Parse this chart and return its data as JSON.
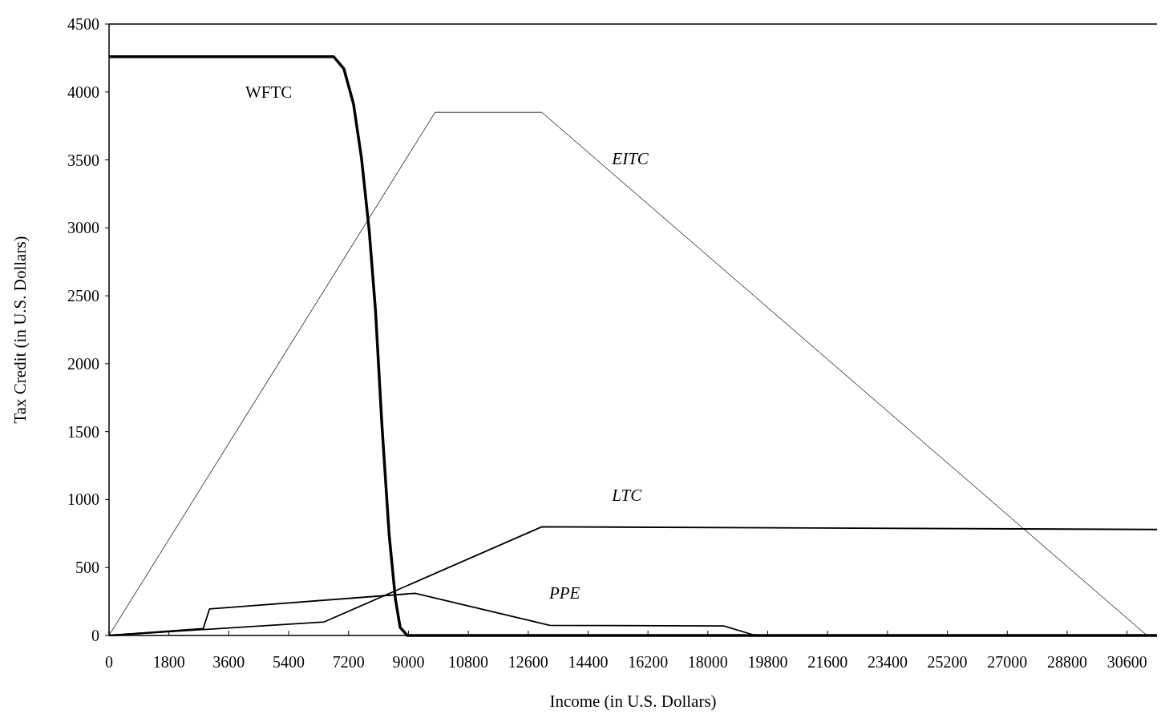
{
  "chart_data": {
    "type": "line",
    "xlabel": "Income (in U.S. Dollars)",
    "ylabel": "Tax Credit (in U.S. Dollars)",
    "xlim": [
      0,
      31500
    ],
    "xticks": [
      0,
      1800,
      3600,
      5400,
      7200,
      9000,
      10800,
      12600,
      14400,
      16200,
      18000,
      19800,
      21600,
      23400,
      25200,
      27000,
      28800,
      30600
    ],
    "ylim": [
      0,
      4500
    ],
    "yticks": [
      0,
      500,
      1000,
      1500,
      2000,
      2500,
      3000,
      3500,
      4000,
      4500
    ],
    "grid": false,
    "line_style": "solid",
    "series": [
      {
        "name": "WFTC",
        "color": "#000000",
        "x": [
          0,
          6750,
          7060,
          7350,
          7590,
          7820,
          8010,
          8200,
          8420,
          8610,
          8750,
          8965,
          31500
        ],
        "values": [
          4260,
          4260,
          4170,
          3910,
          3510,
          2980,
          2390,
          1560,
          740,
          265,
          60,
          0,
          0
        ]
      },
      {
        "name": "EITC",
        "color": "#000000",
        "x": [
          0,
          9800,
          13010,
          31200,
          31500
        ],
        "values": [
          0,
          3850,
          3850,
          0,
          0
        ]
      },
      {
        "name": "LTC",
        "color": "#000000",
        "x": [
          0,
          6470,
          13010,
          31500
        ],
        "values": [
          0,
          100,
          800,
          780
        ]
      },
      {
        "name": "PPE",
        "color": "#000000",
        "x": [
          0,
          2830,
          3020,
          9200,
          13250,
          18480,
          19430,
          31500
        ],
        "values": [
          0,
          50,
          195,
          310,
          75,
          70,
          0,
          0
        ]
      }
    ]
  }
}
